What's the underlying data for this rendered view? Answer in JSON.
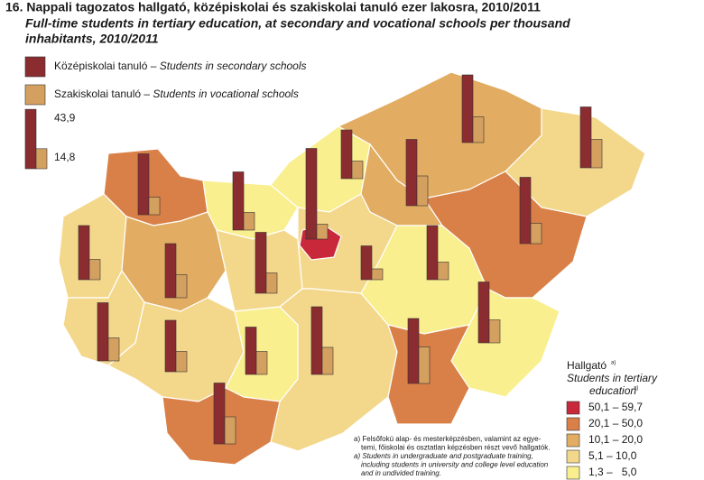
{
  "chart_data": {
    "type": "map",
    "title": "16. Nappali tagozatos hallgató, középiskolai és szakiskolai tanuló ezer lakosra, 2010/2011",
    "subtitle": [
      "Full-time students in tertiary education, at secondary and vocational schools per thousand",
      "inhabitants, 2010/2011"
    ],
    "series": [
      {
        "name": "Középiskolai tanuló – ",
        "name_en": "Students in secondary schools",
        "color": "#8b2c30"
      },
      {
        "name": "Szakiskolai tanuló – ",
        "name_en": "Students in vocational schools",
        "color": "#d4a060"
      }
    ],
    "scale_reference": [
      {
        "value": 43.9,
        "label": "43,9"
      },
      {
        "value": 14.8,
        "label": "14,8"
      }
    ],
    "choropleth": {
      "title": "Hallgató",
      "title_en": [
        "Students in tertiary",
        "education"
      ],
      "note_mark": "a)",
      "classes": [
        {
          "label": "50,1 – 59,7",
          "color": "#c8283a"
        },
        {
          "label": "20,1 – 50,0",
          "color": "#d98048"
        },
        {
          "label": "10,1 – 20,0",
          "color": "#e2ad62"
        },
        {
          "label": "5,1 – 10,0",
          "color": "#f3d88c"
        },
        {
          "label": "1,3 –   5,0",
          "color": "#f9ef8e"
        }
      ]
    },
    "regions": [
      {
        "color": "#d98048",
        "secondary": 45,
        "vocational": 13
      },
      {
        "color": "#f9ef8e",
        "secondary": 43,
        "vocational": 13
      },
      {
        "color": "#f9ef8e",
        "secondary": 36,
        "vocational": 13
      },
      {
        "color": "#e2ad62",
        "secondary": 50,
        "vocational": 19
      },
      {
        "color": "#f3d88c",
        "secondary": 45,
        "vocational": 21
      },
      {
        "color": "#e2ad62",
        "secondary": 49,
        "vocational": 22
      },
      {
        "color": "#f3d88c",
        "secondary": 40,
        "vocational": 15
      },
      {
        "color": "#e2ad62",
        "secondary": 40,
        "vocational": 17
      },
      {
        "color": "#f3d88c",
        "secondary": 45,
        "vocational": 15
      },
      {
        "color": "#f3d88c",
        "secondary": 25,
        "vocational": 8
      },
      {
        "color": "#c8283a",
        "secondary": 67,
        "vocational": 11
      },
      {
        "color": "#f3d88c",
        "secondary": 43,
        "vocational": 17
      },
      {
        "color": "#f3d88c",
        "secondary": 38,
        "vocational": 15
      },
      {
        "color": "#f9ef8e",
        "secondary": 35,
        "vocational": 17
      },
      {
        "color": "#d98048",
        "secondary": 45,
        "vocational": 20
      },
      {
        "color": "#f3d88c",
        "secondary": 50,
        "vocational": 20
      },
      {
        "color": "#f9ef8e",
        "secondary": 40,
        "vocational": 13
      },
      {
        "color": "#d98048",
        "secondary": 49,
        "vocational": 15
      },
      {
        "color": "#f9ef8e",
        "secondary": 45,
        "vocational": 17
      },
      {
        "color": "#d98048",
        "secondary": 48,
        "vocational": 27
      }
    ],
    "footnote": [
      "a) Felsőfokú alap- és mesterképzésben, valamint az egye-",
      "temi, főiskolai és osztatlan képzésben részt vevő hallgatók.",
      "a) Students in undergraduate and postgraduate training,",
      "including students in university and college level education",
      "and in undivided training."
    ]
  }
}
